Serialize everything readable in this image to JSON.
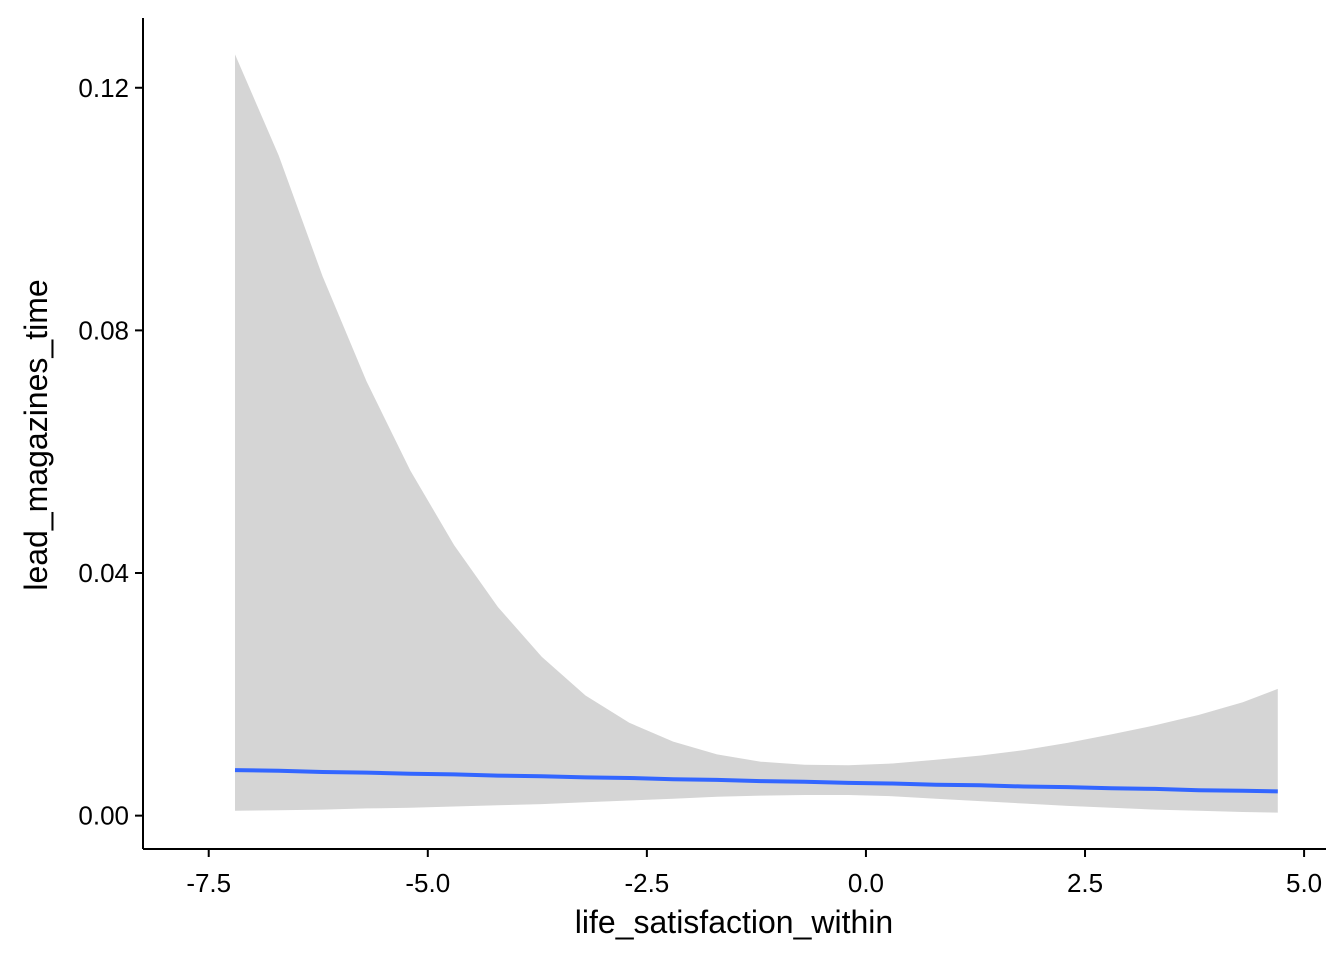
{
  "chart_data": {
    "type": "line",
    "title": "",
    "xlabel": "life_satisfaction_within",
    "ylabel": "lead_magazines_time",
    "xlim": [
      -8.25,
      5.25
    ],
    "ylim": [
      -0.0055,
      0.1315
    ],
    "x_ticks": [
      -7.5,
      -5.0,
      -2.5,
      0.0,
      2.5,
      5.0
    ],
    "x_tick_labels": [
      "-7.5",
      "-5.0",
      "-2.5",
      "0.0",
      "2.5",
      "5.0"
    ],
    "y_ticks": [
      0.0,
      0.04,
      0.08,
      0.12
    ],
    "y_tick_labels": [
      "0.00",
      "0.04",
      "0.08",
      "0.12"
    ],
    "grid": false,
    "legend": "none",
    "colors": {
      "line": "#3366FF",
      "ribbon": "#D5D5D5",
      "axis": "#000000"
    },
    "series": [
      {
        "x": [
          -7.2,
          -6.7,
          -6.2,
          -5.7,
          -5.2,
          -4.7,
          -4.2,
          -3.7,
          -3.2,
          -2.7,
          -2.2,
          -1.7,
          -1.2,
          -0.7,
          -0.2,
          0.3,
          0.8,
          1.3,
          1.8,
          2.3,
          2.8,
          3.3,
          3.8,
          4.3,
          4.7
        ],
        "y": [
          0.0075,
          0.0074,
          0.0072,
          0.0071,
          0.0069,
          0.0068,
          0.0066,
          0.0065,
          0.0063,
          0.0062,
          0.006,
          0.0059,
          0.0057,
          0.0056,
          0.0054,
          0.0053,
          0.0051,
          0.005,
          0.0048,
          0.0047,
          0.0045,
          0.0044,
          0.0042,
          0.0041,
          0.004
        ],
        "ymin": [
          0.0008,
          0.0009,
          0.001,
          0.0012,
          0.0013,
          0.0015,
          0.0017,
          0.0019,
          0.0022,
          0.0025,
          0.0028,
          0.0031,
          0.0033,
          0.0034,
          0.0034,
          0.0032,
          0.0028,
          0.0024,
          0.002,
          0.0016,
          0.0013,
          0.001,
          0.0008,
          0.0006,
          0.0005
        ],
        "ymax": [
          0.1255,
          0.1088,
          0.0889,
          0.0716,
          0.0569,
          0.0446,
          0.0344,
          0.0262,
          0.0198,
          0.0153,
          0.0122,
          0.0101,
          0.0089,
          0.0084,
          0.0083,
          0.0086,
          0.0092,
          0.0099,
          0.0108,
          0.012,
          0.0134,
          0.0149,
          0.0166,
          0.0187,
          0.0209
        ]
      }
    ]
  }
}
